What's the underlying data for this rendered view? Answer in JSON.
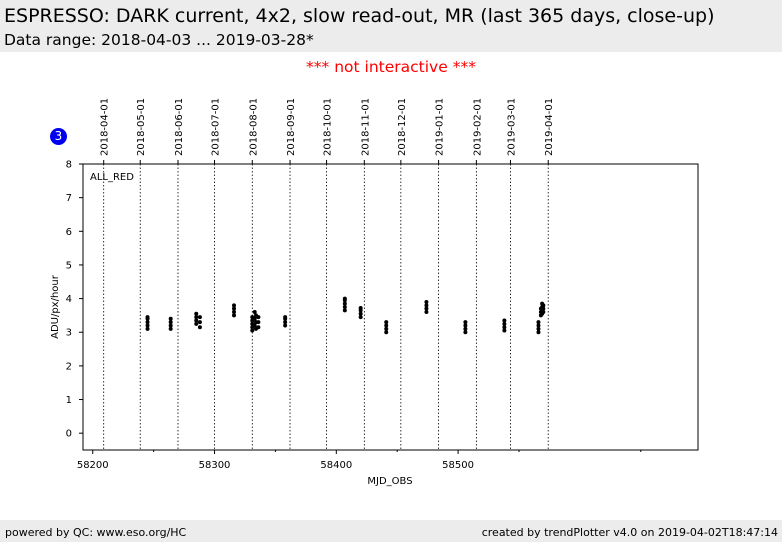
{
  "header": {
    "title": "ESPRESSO: DARK current, 4x2, slow read-out, MR (last 365 days, close-up)",
    "subtitle": "Data range: 2018-04-03 ... 2019-03-28*"
  },
  "notice": "*** not interactive ***",
  "badge": "3",
  "footer": {
    "left": "powered by QC: www.eso.org/HC",
    "right": "created by trendPlotter v4.0 on 2019-04-02T18:47:14"
  },
  "chart_data": {
    "type": "scatter",
    "panel_label": "ALL_RED",
    "xlabel": "MJD_OBS",
    "ylabel": "ADU/px/hour",
    "xlim": [
      58192,
      58697
    ],
    "ylim": [
      -0.5,
      8
    ],
    "xticks": [
      58200,
      58300,
      58400,
      58500
    ],
    "yticks": [
      0,
      1,
      2,
      3,
      4,
      5,
      6,
      7,
      8
    ],
    "marker_color": "#000000",
    "date_markers": [
      {
        "label": "2018-04-01",
        "mjd": 58209
      },
      {
        "label": "2018-05-01",
        "mjd": 58239
      },
      {
        "label": "2018-06-01",
        "mjd": 58270
      },
      {
        "label": "2018-07-01",
        "mjd": 58300
      },
      {
        "label": "2018-08-01",
        "mjd": 58331
      },
      {
        "label": "2018-09-01",
        "mjd": 58362
      },
      {
        "label": "2018-10-01",
        "mjd": 58392
      },
      {
        "label": "2018-11-01",
        "mjd": 58423
      },
      {
        "label": "2018-12-01",
        "mjd": 58453
      },
      {
        "label": "2019-01-01",
        "mjd": 58484
      },
      {
        "label": "2019-02-01",
        "mjd": 58515
      },
      {
        "label": "2019-03-01",
        "mjd": 58543
      },
      {
        "label": "2019-04-01",
        "mjd": 58574
      }
    ],
    "points": [
      {
        "x": 58245,
        "y": 3.1
      },
      {
        "x": 58245,
        "y": 3.2
      },
      {
        "x": 58245,
        "y": 3.3
      },
      {
        "x": 58245,
        "y": 3.4
      },
      {
        "x": 58245,
        "y": 3.45
      },
      {
        "x": 58264,
        "y": 3.1
      },
      {
        "x": 58264,
        "y": 3.2
      },
      {
        "x": 58264,
        "y": 3.3
      },
      {
        "x": 58264,
        "y": 3.4
      },
      {
        "x": 58285,
        "y": 3.25
      },
      {
        "x": 58285,
        "y": 3.35
      },
      {
        "x": 58285,
        "y": 3.45
      },
      {
        "x": 58285,
        "y": 3.55
      },
      {
        "x": 58288,
        "y": 3.15
      },
      {
        "x": 58288,
        "y": 3.3
      },
      {
        "x": 58288,
        "y": 3.45
      },
      {
        "x": 58316,
        "y": 3.5
      },
      {
        "x": 58316,
        "y": 3.6
      },
      {
        "x": 58316,
        "y": 3.7
      },
      {
        "x": 58316,
        "y": 3.8
      },
      {
        "x": 58331,
        "y": 3.05
      },
      {
        "x": 58331,
        "y": 3.15
      },
      {
        "x": 58331,
        "y": 3.25
      },
      {
        "x": 58331,
        "y": 3.35
      },
      {
        "x": 58331,
        "y": 3.45
      },
      {
        "x": 58333,
        "y": 3.2
      },
      {
        "x": 58333,
        "y": 3.4
      },
      {
        "x": 58333,
        "y": 3.6
      },
      {
        "x": 58334,
        "y": 3.1
      },
      {
        "x": 58334,
        "y": 3.3
      },
      {
        "x": 58334,
        "y": 3.5
      },
      {
        "x": 58336,
        "y": 3.15
      },
      {
        "x": 58336,
        "y": 3.3
      },
      {
        "x": 58336,
        "y": 3.45
      },
      {
        "x": 58358,
        "y": 3.2
      },
      {
        "x": 58358,
        "y": 3.3
      },
      {
        "x": 58358,
        "y": 3.4
      },
      {
        "x": 58358,
        "y": 3.45
      },
      {
        "x": 58407,
        "y": 3.65
      },
      {
        "x": 58407,
        "y": 3.75
      },
      {
        "x": 58407,
        "y": 3.85
      },
      {
        "x": 58407,
        "y": 3.95
      },
      {
        "x": 58407,
        "y": 4.0
      },
      {
        "x": 58420,
        "y": 3.45
      },
      {
        "x": 58420,
        "y": 3.55
      },
      {
        "x": 58420,
        "y": 3.65
      },
      {
        "x": 58420,
        "y": 3.72
      },
      {
        "x": 58441,
        "y": 3.0
      },
      {
        "x": 58441,
        "y": 3.1
      },
      {
        "x": 58441,
        "y": 3.2
      },
      {
        "x": 58441,
        "y": 3.3
      },
      {
        "x": 58474,
        "y": 3.6
      },
      {
        "x": 58474,
        "y": 3.7
      },
      {
        "x": 58474,
        "y": 3.8
      },
      {
        "x": 58474,
        "y": 3.9
      },
      {
        "x": 58506,
        "y": 3.0
      },
      {
        "x": 58506,
        "y": 3.1
      },
      {
        "x": 58506,
        "y": 3.2
      },
      {
        "x": 58506,
        "y": 3.3
      },
      {
        "x": 58538,
        "y": 3.05
      },
      {
        "x": 58538,
        "y": 3.15
      },
      {
        "x": 58538,
        "y": 3.25
      },
      {
        "x": 58538,
        "y": 3.35
      },
      {
        "x": 58566,
        "y": 3.0
      },
      {
        "x": 58566,
        "y": 3.1
      },
      {
        "x": 58566,
        "y": 3.2
      },
      {
        "x": 58566,
        "y": 3.3
      },
      {
        "x": 58568,
        "y": 3.5
      },
      {
        "x": 58568,
        "y": 3.6
      },
      {
        "x": 58568,
        "y": 3.7
      },
      {
        "x": 58569,
        "y": 3.55
      },
      {
        "x": 58569,
        "y": 3.65
      },
      {
        "x": 58569,
        "y": 3.75
      },
      {
        "x": 58569,
        "y": 3.85
      },
      {
        "x": 58570,
        "y": 3.6
      },
      {
        "x": 58570,
        "y": 3.7
      },
      {
        "x": 58570,
        "y": 3.8
      }
    ]
  }
}
